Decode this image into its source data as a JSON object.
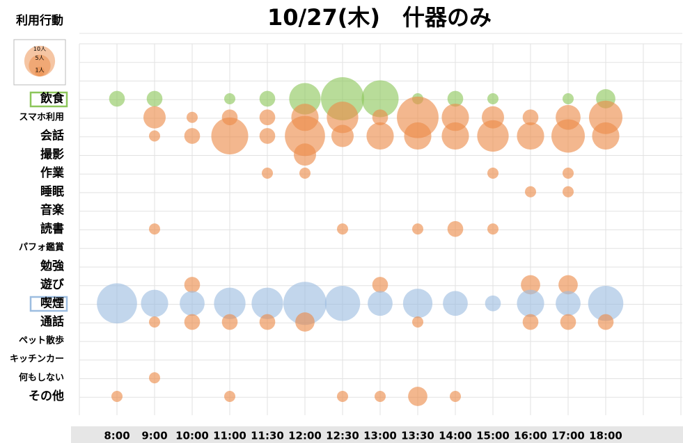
{
  "chart_data": {
    "type": "bubble",
    "title": "10/27(木)　什器のみ",
    "y_axis_label": "利用行動",
    "x": [
      "8:00",
      "9:00",
      "10:00",
      "11:00",
      "11:30",
      "12:00",
      "12:30",
      "13:00",
      "13:30",
      "14:00",
      "15:00",
      "16:00",
      "17:00",
      "18:00"
    ],
    "size_legend": [
      {
        "value": 10,
        "label": "10人"
      },
      {
        "value": 5,
        "label": "5人"
      },
      {
        "value": 1,
        "label": "1人"
      }
    ],
    "grid": true,
    "series": [
      {
        "name": "飲食",
        "color": "#8cc65a",
        "values": [
          2,
          2,
          null,
          1,
          2,
          8,
          15,
          11,
          1,
          2,
          1,
          null,
          1,
          3
        ]
      },
      {
        "name": "スマホ利用",
        "color": "#ec8b48",
        "values": [
          null,
          4,
          1,
          2,
          2,
          6,
          8,
          2,
          14,
          6,
          4,
          2,
          5,
          9
        ]
      },
      {
        "name": "会話",
        "color": "#ec8b48",
        "values": [
          null,
          1,
          2,
          11,
          2,
          13,
          4,
          6,
          6,
          6,
          8,
          6,
          9,
          6
        ]
      },
      {
        "name": "撮影",
        "color": "#ec8b48",
        "values": [
          null,
          null,
          null,
          null,
          null,
          4,
          null,
          null,
          null,
          null,
          null,
          null,
          null,
          null
        ]
      },
      {
        "name": "作業",
        "color": "#ec8b48",
        "values": [
          null,
          null,
          null,
          null,
          1,
          1,
          null,
          null,
          null,
          null,
          1,
          null,
          1,
          null
        ]
      },
      {
        "name": "睡眠",
        "color": "#ec8b48",
        "values": [
          null,
          null,
          null,
          null,
          null,
          null,
          null,
          null,
          null,
          null,
          null,
          1,
          1,
          null
        ]
      },
      {
        "name": "音楽",
        "color": "#ec8b48",
        "values": [
          null,
          null,
          null,
          null,
          null,
          null,
          null,
          null,
          null,
          null,
          null,
          null,
          null,
          null
        ]
      },
      {
        "name": "読書",
        "color": "#ec8b48",
        "values": [
          null,
          1,
          null,
          null,
          null,
          null,
          1,
          null,
          1,
          2,
          1,
          null,
          null,
          null
        ]
      },
      {
        "name": "パフォ鑑賞",
        "color": "#ec8b48",
        "values": [
          null,
          null,
          null,
          null,
          null,
          null,
          null,
          null,
          null,
          null,
          null,
          null,
          null,
          null
        ]
      },
      {
        "name": "勉強",
        "color": "#ec8b48",
        "values": [
          null,
          null,
          null,
          null,
          null,
          null,
          null,
          null,
          null,
          null,
          null,
          null,
          null,
          null
        ]
      },
      {
        "name": "遊び",
        "color": "#ec8b48",
        "values": [
          null,
          null,
          2,
          null,
          null,
          null,
          null,
          2,
          null,
          null,
          null,
          3,
          3,
          null
        ]
      },
      {
        "name": "喫煙",
        "color": "#9dbde0",
        "values": [
          13,
          6,
          5,
          8,
          8,
          15,
          10,
          5,
          7,
          5,
          2,
          6,
          5,
          10
        ]
      },
      {
        "name": "通話",
        "color": "#ec8b48",
        "values": [
          null,
          1,
          2,
          2,
          2,
          3,
          null,
          null,
          1,
          null,
          null,
          2,
          2,
          2
        ]
      },
      {
        "name": "ペット散歩",
        "color": "#ec8b48",
        "values": [
          null,
          null,
          null,
          null,
          null,
          null,
          null,
          null,
          null,
          null,
          null,
          null,
          null,
          null
        ]
      },
      {
        "name": "キッチンカー",
        "color": "#ec8b48",
        "values": [
          null,
          null,
          null,
          null,
          null,
          null,
          null,
          null,
          null,
          null,
          null,
          null,
          null,
          null
        ]
      },
      {
        "name": "何もしない",
        "color": "#ec8b48",
        "values": [
          null,
          1,
          null,
          null,
          null,
          null,
          null,
          null,
          null,
          null,
          null,
          null,
          null,
          null
        ]
      },
      {
        "name": "その他",
        "color": "#ec8b48",
        "values": [
          1,
          null,
          null,
          1,
          null,
          null,
          1,
          1,
          3,
          1,
          null,
          null,
          null,
          null
        ]
      }
    ]
  }
}
